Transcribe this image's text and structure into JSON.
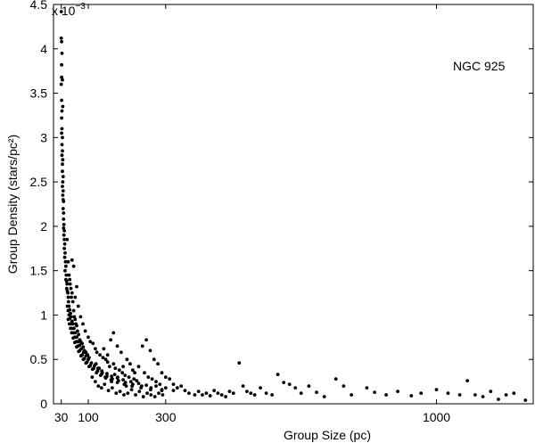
{
  "chart_data": {
    "type": "scatter",
    "xlabel": "Group Size (pc)",
    "ylabel": "Group Density (stars/pc²)",
    "y_multiplier": "x 10",
    "y_multiplier_exponent": "−3",
    "annotation": "NGC 925",
    "xlim": [
      10,
      1250
    ],
    "ylim": [
      0,
      4.5
    ],
    "x_ticks": [
      30,
      100,
      300,
      1000
    ],
    "x_tick_labels": [
      "30",
      "100",
      "300",
      "1000"
    ],
    "y_ticks": [
      0,
      0.5,
      1,
      1.5,
      2,
      2.5,
      3,
      3.5,
      4,
      4.5
    ],
    "y_tick_labels": [
      "0",
      "0.5",
      "1",
      "1.5",
      "2",
      "2.5",
      "3",
      "3.5",
      "4",
      "4.5"
    ],
    "grid": false,
    "point_color": "#000000",
    "points": [
      [
        30,
        4.42
      ],
      [
        30,
        4.12
      ],
      [
        31,
        4.08
      ],
      [
        32,
        3.95
      ],
      [
        31,
        3.82
      ],
      [
        31,
        3.68
      ],
      [
        33,
        3.65
      ],
      [
        30,
        3.6
      ],
      [
        31,
        3.42
      ],
      [
        34,
        3.35
      ],
      [
        32,
        3.3
      ],
      [
        31,
        3.22
      ],
      [
        32,
        3.1
      ],
      [
        31,
        3.05
      ],
      [
        33,
        3.0
      ],
      [
        32,
        2.92
      ],
      [
        33,
        2.85
      ],
      [
        32,
        2.8
      ],
      [
        34,
        2.75
      ],
      [
        33,
        2.7
      ],
      [
        33,
        2.62
      ],
      [
        35,
        2.56
      ],
      [
        34,
        2.5
      ],
      [
        33,
        2.45
      ],
      [
        35,
        2.4
      ],
      [
        34,
        2.35
      ],
      [
        35,
        2.3
      ],
      [
        36,
        2.28
      ],
      [
        35,
        2.2
      ],
      [
        36,
        2.15
      ],
      [
        36,
        2.08
      ],
      [
        37,
        2.02
      ],
      [
        36,
        1.98
      ],
      [
        38,
        1.95
      ],
      [
        37,
        1.9
      ],
      [
        38,
        1.85
      ],
      [
        39,
        1.8
      ],
      [
        38,
        1.75
      ],
      [
        40,
        1.7
      ],
      [
        39,
        1.65
      ],
      [
        41,
        1.6
      ],
      [
        42,
        1.55
      ],
      [
        40,
        1.5
      ],
      [
        43,
        1.45
      ],
      [
        42,
        1.4
      ],
      [
        44,
        1.38
      ],
      [
        45,
        1.35
      ],
      [
        44,
        1.3
      ],
      [
        46,
        1.27
      ],
      [
        47,
        1.25
      ],
      [
        48,
        1.2
      ],
      [
        49,
        1.15
      ],
      [
        50,
        1.1
      ],
      [
        52,
        1.06
      ],
      [
        54,
        1.02
      ],
      [
        56,
        0.98
      ],
      [
        58,
        0.93
      ],
      [
        60,
        0.9
      ],
      [
        63,
        0.85
      ],
      [
        66,
        0.8
      ],
      [
        70,
        0.75
      ],
      [
        74,
        0.7
      ],
      [
        78,
        0.66
      ],
      [
        82,
        0.62
      ],
      [
        88,
        0.58
      ],
      [
        94,
        0.54
      ],
      [
        100,
        0.5
      ],
      [
        108,
        0.46
      ],
      [
        116,
        0.43
      ],
      [
        125,
        0.4
      ],
      [
        135,
        0.37
      ],
      [
        148,
        0.34
      ],
      [
        160,
        0.31
      ],
      [
        175,
        0.29
      ],
      [
        190,
        0.27
      ],
      [
        210,
        0.25
      ],
      [
        230,
        0.23
      ],
      [
        250,
        0.21
      ],
      [
        275,
        0.2
      ],
      [
        300,
        0.18
      ],
      [
        46,
        1.1
      ],
      [
        48,
        1.05
      ],
      [
        50,
        1.0
      ],
      [
        52,
        0.96
      ],
      [
        55,
        0.9
      ],
      [
        58,
        0.85
      ],
      [
        61,
        0.8
      ],
      [
        65,
        0.75
      ],
      [
        69,
        0.7
      ],
      [
        73,
        0.65
      ],
      [
        78,
        0.6
      ],
      [
        84,
        0.55
      ],
      [
        90,
        0.51
      ],
      [
        97,
        0.47
      ],
      [
        105,
        0.43
      ],
      [
        114,
        0.4
      ],
      [
        124,
        0.37
      ],
      [
        135,
        0.34
      ],
      [
        148,
        0.31
      ],
      [
        162,
        0.28
      ],
      [
        178,
        0.26
      ],
      [
        196,
        0.24
      ],
      [
        215,
        0.22
      ],
      [
        238,
        0.2
      ],
      [
        262,
        0.18
      ],
      [
        290,
        0.16
      ],
      [
        320,
        0.15
      ],
      [
        48,
        0.95
      ],
      [
        51,
        0.9
      ],
      [
        54,
        0.85
      ],
      [
        57,
        0.8
      ],
      [
        61,
        0.74
      ],
      [
        65,
        0.69
      ],
      [
        70,
        0.64
      ],
      [
        75,
        0.59
      ],
      [
        81,
        0.54
      ],
      [
        87,
        0.5
      ],
      [
        94,
        0.46
      ],
      [
        102,
        0.42
      ],
      [
        111,
        0.39
      ],
      [
        121,
        0.35
      ],
      [
        132,
        0.32
      ],
      [
        145,
        0.29
      ],
      [
        159,
        0.27
      ],
      [
        175,
        0.24
      ],
      [
        193,
        0.22
      ],
      [
        213,
        0.2
      ],
      [
        236,
        0.18
      ],
      [
        261,
        0.16
      ],
      [
        290,
        0.15
      ],
      [
        52,
        1.4
      ],
      [
        55,
        1.3
      ],
      [
        56,
        1.2
      ],
      [
        58,
        1.25
      ],
      [
        60,
        1.15
      ],
      [
        62,
        1.05
      ],
      [
        64,
        0.98
      ],
      [
        66,
        0.95
      ],
      [
        68,
        0.9
      ],
      [
        70,
        0.88
      ],
      [
        72,
        0.82
      ],
      [
        75,
        0.78
      ],
      [
        78,
        0.72
      ],
      [
        80,
        0.7
      ],
      [
        84,
        0.68
      ],
      [
        87,
        0.64
      ],
      [
        90,
        0.6
      ],
      [
        94,
        0.58
      ],
      [
        98,
        0.55
      ],
      [
        102,
        0.52
      ],
      [
        45,
        1.85
      ],
      [
        48,
        1.6
      ],
      [
        50,
        1.45
      ],
      [
        53,
        1.35
      ],
      [
        62,
        1.55
      ],
      [
        70,
        1.32
      ],
      [
        58,
        1.62
      ],
      [
        66,
        1.2
      ],
      [
        74,
        1.1
      ],
      [
        80,
        0.98
      ],
      [
        86,
        0.9
      ],
      [
        92,
        0.82
      ],
      [
        100,
        0.75
      ],
      [
        105,
        0.7
      ],
      [
        112,
        0.68
      ],
      [
        118,
        0.62
      ],
      [
        122,
        0.58
      ],
      [
        130,
        0.55
      ],
      [
        138,
        0.52
      ],
      [
        145,
        0.5
      ],
      [
        150,
        0.47
      ],
      [
        155,
        0.42
      ],
      [
        165,
        0.45
      ],
      [
        170,
        0.4
      ],
      [
        180,
        0.38
      ],
      [
        188,
        0.35
      ],
      [
        195,
        0.32
      ],
      [
        205,
        0.3
      ],
      [
        218,
        0.28
      ],
      [
        225,
        0.26
      ],
      [
        140,
        0.62
      ],
      [
        150,
        0.55
      ],
      [
        158,
        0.72
      ],
      [
        165,
        0.8
      ],
      [
        175,
        0.65
      ],
      [
        185,
        0.58
      ],
      [
        200,
        0.5
      ],
      [
        208,
        0.45
      ],
      [
        215,
        0.38
      ],
      [
        230,
        0.42
      ],
      [
        245,
        0.35
      ],
      [
        255,
        0.3
      ],
      [
        265,
        0.28
      ],
      [
        275,
        0.25
      ],
      [
        285,
        0.22
      ],
      [
        240,
        0.65
      ],
      [
        250,
        0.72
      ],
      [
        260,
        0.6
      ],
      [
        270,
        0.5
      ],
      [
        280,
        0.45
      ],
      [
        290,
        0.35
      ],
      [
        300,
        0.3
      ],
      [
        310,
        0.28
      ],
      [
        320,
        0.22
      ],
      [
        330,
        0.18
      ],
      [
        340,
        0.2
      ],
      [
        350,
        0.15
      ],
      [
        360,
        0.12
      ],
      [
        375,
        0.1
      ],
      [
        385,
        0.14
      ],
      [
        395,
        0.1
      ],
      [
        405,
        0.12
      ],
      [
        415,
        0.09
      ],
      [
        425,
        0.15
      ],
      [
        435,
        0.12
      ],
      [
        445,
        0.1
      ],
      [
        455,
        0.08
      ],
      [
        465,
        0.14
      ],
      [
        475,
        0.12
      ],
      [
        490,
        0.46
      ],
      [
        500,
        0.2
      ],
      [
        510,
        0.14
      ],
      [
        520,
        0.12
      ],
      [
        530,
        0.1
      ],
      [
        545,
        0.18
      ],
      [
        560,
        0.12
      ],
      [
        575,
        0.1
      ],
      [
        590,
        0.33
      ],
      [
        605,
        0.24
      ],
      [
        620,
        0.22
      ],
      [
        635,
        0.18
      ],
      [
        650,
        0.12
      ],
      [
        670,
        0.2
      ],
      [
        690,
        0.13
      ],
      [
        710,
        0.08
      ],
      [
        740,
        0.28
      ],
      [
        760,
        0.2
      ],
      [
        780,
        0.1
      ],
      [
        820,
        0.18
      ],
      [
        840,
        0.13
      ],
      [
        870,
        0.1
      ],
      [
        900,
        0.14
      ],
      [
        935,
        0.09
      ],
      [
        960,
        0.12
      ],
      [
        1000,
        0.16
      ],
      [
        1030,
        0.12
      ],
      [
        1060,
        0.1
      ],
      [
        1080,
        0.26
      ],
      [
        1100,
        0.1
      ],
      [
        1120,
        0.08
      ],
      [
        1140,
        0.14
      ],
      [
        1160,
        0.05
      ],
      [
        1180,
        0.1
      ],
      [
        1200,
        0.12
      ],
      [
        1230,
        0.04
      ],
      [
        110,
        0.3
      ],
      [
        118,
        0.25
      ],
      [
        126,
        0.2
      ],
      [
        134,
        0.18
      ],
      [
        142,
        0.22
      ],
      [
        152,
        0.15
      ],
      [
        162,
        0.18
      ],
      [
        172,
        0.12
      ],
      [
        182,
        0.14
      ],
      [
        192,
        0.1
      ],
      [
        202,
        0.12
      ],
      [
        212,
        0.16
      ],
      [
        222,
        0.1
      ],
      [
        232,
        0.14
      ],
      [
        242,
        0.08
      ],
      [
        252,
        0.12
      ],
      [
        262,
        0.1
      ],
      [
        272,
        0.08
      ],
      [
        282,
        0.12
      ],
      [
        292,
        0.1
      ],
      [
        120,
        0.45
      ],
      [
        128,
        0.4
      ],
      [
        136,
        0.35
      ],
      [
        144,
        0.3
      ],
      [
        160,
        0.25
      ],
      [
        168,
        0.33
      ],
      [
        176,
        0.3
      ],
      [
        190,
        0.42
      ],
      [
        198,
        0.2
      ],
      [
        220,
        0.35
      ]
    ]
  }
}
